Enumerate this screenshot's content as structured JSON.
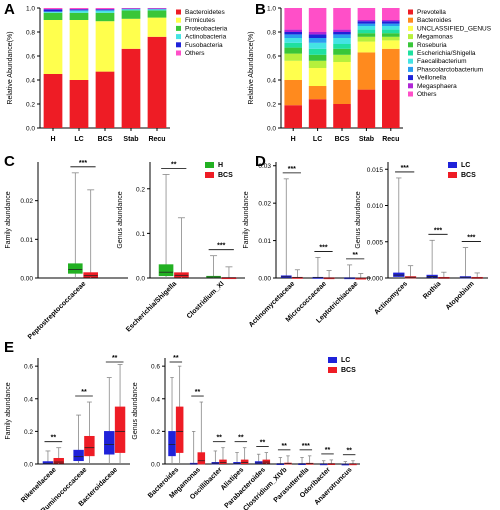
{
  "panels": {
    "A": "A",
    "B": "B",
    "C": "C",
    "D": "D",
    "E": "E"
  },
  "chart_data": [
    {
      "id": "A",
      "type": "bar",
      "stacked": true,
      "ylabel": "Relative Abundance(%)",
      "ylim": [
        0,
        1.0
      ],
      "yticks": [
        "0.0",
        "0.2",
        "0.4",
        "0.6",
        "0.8",
        "1.0"
      ],
      "categories": [
        "H",
        "LC",
        "BCS",
        "Stab",
        "Recu"
      ],
      "legend_position": "right",
      "series": [
        {
          "name": "Bacteroidetes",
          "color": "#ee1c25",
          "values": [
            0.45,
            0.4,
            0.47,
            0.66,
            0.76
          ]
        },
        {
          "name": "Firmicutes",
          "color": "#ffff4d",
          "values": [
            0.45,
            0.5,
            0.42,
            0.25,
            0.16
          ]
        },
        {
          "name": "Proteobacteria",
          "color": "#39c639",
          "values": [
            0.06,
            0.06,
            0.07,
            0.07,
            0.06
          ]
        },
        {
          "name": "Actinobacteria",
          "color": "#44e4e4",
          "values": [
            0.01,
            0.02,
            0.02,
            0.01,
            0.01
          ]
        },
        {
          "name": "Fusobacteria",
          "color": "#1f22d9",
          "values": [
            0.02,
            0.01,
            0.01,
            0.005,
            0.005
          ]
        },
        {
          "name": "Others",
          "color": "#ff4fc8",
          "values": [
            0.01,
            0.01,
            0.01,
            0.005,
            0.005
          ]
        }
      ]
    },
    {
      "id": "B",
      "type": "bar",
      "stacked": true,
      "ylabel": "Relative Abundance(%)",
      "ylim": [
        0,
        1.0
      ],
      "yticks": [
        "0.0",
        "0.2",
        "0.4",
        "0.6",
        "0.8",
        "1.0"
      ],
      "categories": [
        "H",
        "LC",
        "BCS",
        "Stab",
        "Recu"
      ],
      "legend_position": "right",
      "series": [
        {
          "name": "Prevotella",
          "color": "#ee1c25",
          "values": [
            0.19,
            0.24,
            0.2,
            0.32,
            0.4
          ]
        },
        {
          "name": "Bacteroides",
          "color": "#ff8a1e",
          "values": [
            0.21,
            0.11,
            0.2,
            0.31,
            0.26
          ]
        },
        {
          "name": "UNCLASSIFIED_GENUS",
          "color": "#ffff4d",
          "values": [
            0.16,
            0.15,
            0.15,
            0.09,
            0.07
          ]
        },
        {
          "name": "Megamonas",
          "color": "#b6f03c",
          "values": [
            0.06,
            0.06,
            0.06,
            0.04,
            0.03
          ]
        },
        {
          "name": "Roseburia",
          "color": "#39c639",
          "values": [
            0.05,
            0.05,
            0.05,
            0.03,
            0.03
          ]
        },
        {
          "name": "Escherichia/Shigella",
          "color": "#1fe0a0",
          "values": [
            0.04,
            0.05,
            0.04,
            0.03,
            0.03
          ]
        },
        {
          "name": "Faecalibacterium",
          "color": "#44e4e4",
          "values": [
            0.04,
            0.05,
            0.05,
            0.03,
            0.03
          ]
        },
        {
          "name": "Phascolarctobacterium",
          "color": "#2a9df0",
          "values": [
            0.03,
            0.04,
            0.03,
            0.02,
            0.02
          ]
        },
        {
          "name": "Veillonella",
          "color": "#1f22d9",
          "values": [
            0.02,
            0.03,
            0.02,
            0.02,
            0.02
          ]
        },
        {
          "name": "Megasphaera",
          "color": "#b026d6",
          "values": [
            0.02,
            0.02,
            0.02,
            0.01,
            0.01
          ]
        },
        {
          "name": "Others",
          "color": "#ff4fc8",
          "values": [
            0.18,
            0.2,
            0.18,
            0.1,
            0.1
          ]
        }
      ]
    },
    {
      "id": "C1",
      "type": "box",
      "ylabel": "Family abundance",
      "ylim": [
        0,
        0.03
      ],
      "yticks": [
        "0.00",
        "0.01",
        "0.02"
      ],
      "ytick_values": [
        0,
        0.01,
        0.02
      ],
      "categories": [
        "Peptostreptococcaceae"
      ],
      "groups": [
        {
          "name": "H",
          "color": "#22b022"
        },
        {
          "name": "BCS",
          "color": "#ee1c25"
        }
      ],
      "boxes": [
        [
          {
            "min": 0,
            "q1": 0.0012,
            "median": 0.0022,
            "q3": 0.0037,
            "max": 0.0272
          },
          {
            "min": 0,
            "q1": 0.0002,
            "median": 0.0006,
            "q3": 0.0014,
            "max": 0.0228
          }
        ]
      ],
      "significance": [
        "***"
      ],
      "legend_position": "none"
    },
    {
      "id": "C2",
      "type": "box",
      "ylabel": "Genus abundance",
      "ylim": [
        0,
        0.26
      ],
      "yticks": [
        "0.0",
        "0.1",
        "0.2"
      ],
      "ytick_values": [
        0,
        0.1,
        0.2
      ],
      "categories": [
        "Escherichia/Shigella",
        "Clostridium_XI"
      ],
      "groups": [
        {
          "name": "H",
          "color": "#22b022"
        },
        {
          "name": "BCS",
          "color": "#ee1c25"
        }
      ],
      "boxes": [
        [
          {
            "min": 0,
            "q1": 0.005,
            "median": 0.013,
            "q3": 0.03,
            "max": 0.232
          },
          {
            "min": 0,
            "q1": 0.002,
            "median": 0.006,
            "q3": 0.012,
            "max": 0.135
          }
        ],
        [
          {
            "min": 0,
            "q1": 0.001,
            "median": 0.002,
            "q3": 0.004,
            "max": 0.05
          },
          {
            "min": 0,
            "q1": 0.0002,
            "median": 0.0005,
            "q3": 0.001,
            "max": 0.025
          }
        ]
      ],
      "significance": [
        "**",
        "***"
      ],
      "legend": [
        "H",
        "BCS"
      ],
      "legend_position": "top-right"
    },
    {
      "id": "D1",
      "type": "box",
      "ylabel": "Family abundance",
      "ylim": [
        0,
        0.031
      ],
      "yticks": [
        "0.00",
        "0.01",
        "0.02",
        "0.03"
      ],
      "ytick_values": [
        0,
        0.01,
        0.02,
        0.03
      ],
      "categories": [
        "Actinomycetaceae",
        "Micrococcaceae",
        "Leptotrichiaceae"
      ],
      "groups": [
        {
          "name": "LC",
          "color": "#1f22d9"
        },
        {
          "name": "BCS",
          "color": "#ee1c25"
        }
      ],
      "boxes": [
        [
          {
            "min": 0,
            "q1": 0.0001,
            "median": 0.0003,
            "q3": 0.0006,
            "max": 0.0265
          },
          {
            "min": 0,
            "q1": 0,
            "median": 0.0001,
            "q3": 0.0002,
            "max": 0.0022
          }
        ],
        [
          {
            "min": 0,
            "q1": 0,
            "median": 0.0001,
            "q3": 0.0002,
            "max": 0.0055
          },
          {
            "min": 0,
            "q1": 0,
            "median": 0,
            "q3": 0.0001,
            "max": 0.002
          }
        ],
        [
          {
            "min": 0,
            "q1": 0,
            "median": 0,
            "q3": 0.0001,
            "max": 0.0035
          },
          {
            "min": 0,
            "q1": 0,
            "median": 0,
            "q3": 0,
            "max": 0.0012
          }
        ]
      ],
      "significance": [
        "***",
        "***",
        "**"
      ],
      "legend_position": "none"
    },
    {
      "id": "D2",
      "type": "box",
      "ylabel": "Genus abundance",
      "ylim": [
        0,
        0.016
      ],
      "yticks": [
        "0.000",
        "0.005",
        "0.010",
        "0.015"
      ],
      "ytick_values": [
        0,
        0.005,
        0.01,
        0.015
      ],
      "categories": [
        "Actinomyces",
        "Rothia",
        "Atopobium"
      ],
      "groups": [
        {
          "name": "LC",
          "color": "#1f22d9"
        },
        {
          "name": "BCS",
          "color": "#ee1c25"
        }
      ],
      "boxes": [
        [
          {
            "min": 0,
            "q1": 0.0002,
            "median": 0.0004,
            "q3": 0.0007,
            "max": 0.0138
          },
          {
            "min": 0,
            "q1": 0,
            "median": 0.0001,
            "q3": 0.0002,
            "max": 0.0017
          }
        ],
        [
          {
            "min": 0,
            "q1": 0.0001,
            "median": 0.0002,
            "q3": 0.0004,
            "max": 0.0052
          },
          {
            "min": 0,
            "q1": 0,
            "median": 0,
            "q3": 0.0001,
            "max": 0.0008
          }
        ],
        [
          {
            "min": 0,
            "q1": 0,
            "median": 0.0001,
            "q3": 0.0002,
            "max": 0.0042
          },
          {
            "min": 0,
            "q1": 0,
            "median": 0,
            "q3": 0.0001,
            "max": 0.0007
          }
        ]
      ],
      "significance": [
        "***",
        "***",
        "***"
      ],
      "legend": [
        "LC",
        "BCS"
      ],
      "legend_position": "top-right"
    },
    {
      "id": "E1",
      "type": "box",
      "ylabel": "Family abundance",
      "ylim": [
        0,
        0.65
      ],
      "yticks": [
        "0.0",
        "0.2",
        "0.4",
        "0.6"
      ],
      "ytick_values": [
        0,
        0.2,
        0.4,
        0.6
      ],
      "categories": [
        "Rikenellaceae",
        "Ruminococcaceae",
        "Bacteroidaceae"
      ],
      "groups": [
        {
          "name": "LC",
          "color": "#1f22d9"
        },
        {
          "name": "BCS",
          "color": "#ee1c25"
        }
      ],
      "boxes": [
        [
          {
            "min": 0,
            "q1": 0.001,
            "median": 0.004,
            "q3": 0.015,
            "max": 0.08
          },
          {
            "min": 0,
            "q1": 0.005,
            "median": 0.012,
            "q3": 0.035,
            "max": 0.1
          }
        ],
        [
          {
            "min": 0,
            "q1": 0.02,
            "median": 0.045,
            "q3": 0.085,
            "max": 0.3
          },
          {
            "min": 0,
            "q1": 0.05,
            "median": 0.1,
            "q3": 0.17,
            "max": 0.38
          }
        ],
        [
          {
            "min": 0,
            "q1": 0.06,
            "median": 0.12,
            "q3": 0.2,
            "max": 0.53
          },
          {
            "min": 0,
            "q1": 0.07,
            "median": 0.2,
            "q3": 0.35,
            "max": 0.61
          }
        ]
      ],
      "significance": [
        "**",
        "**",
        "**"
      ],
      "legend_position": "none"
    },
    {
      "id": "E2",
      "type": "box",
      "ylabel": "Genus abundance",
      "ylim": [
        0,
        0.65
      ],
      "yticks": [
        "0.0",
        "0.2",
        "0.4",
        "0.6"
      ],
      "ytick_values": [
        0,
        0.2,
        0.4,
        0.6
      ],
      "categories": [
        "Bacteroides",
        "Megamonas",
        "Oscillibacter",
        "Alistipes",
        "Parabacteroides",
        "Clostridium_XIVb",
        "Parasutterella",
        "Odoribacter",
        "Anaerotruncus"
      ],
      "groups": [
        {
          "name": "LC",
          "color": "#1f22d9"
        },
        {
          "name": "BCS",
          "color": "#ee1c25"
        }
      ],
      "boxes": [
        [
          {
            "min": 0,
            "q1": 0.05,
            "median": 0.12,
            "q3": 0.2,
            "max": 0.53
          },
          {
            "min": 0,
            "q1": 0.07,
            "median": 0.2,
            "q3": 0.35,
            "max": 0.6
          }
        ],
        [
          {
            "min": 0,
            "q1": 0,
            "median": 0,
            "q3": 0.005,
            "max": 0.2
          },
          {
            "min": 0,
            "q1": 0,
            "median": 0.02,
            "q3": 0.07,
            "max": 0.38
          }
        ],
        [
          {
            "min": 0,
            "q1": 0,
            "median": 0.005,
            "q3": 0.01,
            "max": 0.08
          },
          {
            "min": 0,
            "q1": 0.002,
            "median": 0.008,
            "q3": 0.025,
            "max": 0.1
          }
        ],
        [
          {
            "min": 0,
            "q1": 0,
            "median": 0.004,
            "q3": 0.01,
            "max": 0.07
          },
          {
            "min": 0,
            "q1": 0.002,
            "median": 0.01,
            "q3": 0.025,
            "max": 0.1
          }
        ],
        [
          {
            "min": 0,
            "q1": 0.002,
            "median": 0.006,
            "q3": 0.015,
            "max": 0.06
          },
          {
            "min": 0,
            "q1": 0.005,
            "median": 0.012,
            "q3": 0.025,
            "max": 0.07
          }
        ],
        [
          {
            "min": 0,
            "q1": 0,
            "median": 0.001,
            "q3": 0.003,
            "max": 0.04
          },
          {
            "min": 0,
            "q1": 0,
            "median": 0.002,
            "q3": 0.006,
            "max": 0.05
          }
        ],
        [
          {
            "min": 0,
            "q1": 0,
            "median": 0.001,
            "q3": 0.003,
            "max": 0.04
          },
          {
            "min": 0,
            "q1": 0,
            "median": 0.002,
            "q3": 0.005,
            "max": 0.05
          }
        ],
        [
          {
            "min": 0,
            "q1": 0,
            "median": 0.001,
            "q3": 0.002,
            "max": 0.02
          },
          {
            "min": 0,
            "q1": 0,
            "median": 0.001,
            "q3": 0.003,
            "max": 0.025
          }
        ],
        [
          {
            "min": 0,
            "q1": 0,
            "median": 0,
            "q3": 0.001,
            "max": 0.015
          },
          {
            "min": 0,
            "q1": 0,
            "median": 0.001,
            "q3": 0.002,
            "max": 0.02
          }
        ]
      ],
      "significance": [
        "**",
        "**",
        "**",
        "**",
        "**",
        "**",
        "***",
        "**",
        "**"
      ],
      "legend": [
        "LC",
        "BCS"
      ],
      "legend_position": "top-right"
    }
  ]
}
